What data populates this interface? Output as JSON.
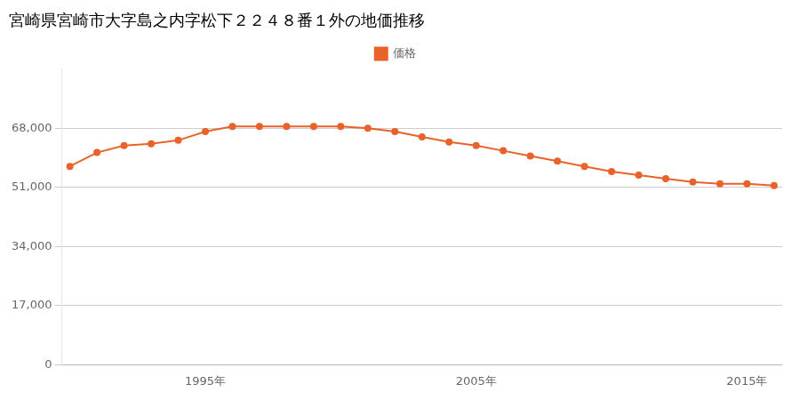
{
  "chart_data": {
    "type": "line",
    "title": "宮崎県宮崎市大字島之内字松下２２４８番１外の地価推移",
    "x": [
      1990,
      1991,
      1992,
      1993,
      1994,
      1995,
      1996,
      1997,
      1998,
      1999,
      2000,
      2001,
      2002,
      2003,
      2004,
      2005,
      2006,
      2007,
      2008,
      2009,
      2010,
      2011,
      2012,
      2013,
      2014,
      2015,
      2016
    ],
    "series": [
      {
        "name": "価格",
        "color": "#E8622A",
        "marker": "circle",
        "values": [
          57000,
          61000,
          63000,
          63500,
          64500,
          67000,
          68500,
          68500,
          68500,
          68500,
          68500,
          68000,
          67000,
          65500,
          64000,
          63000,
          61500,
          60000,
          58500,
          57000,
          55500,
          54500,
          53500,
          52500,
          52000,
          52000,
          51500
        ]
      }
    ],
    "xlim": [
      1989.7,
      2016.3
    ],
    "xticks": [
      {
        "value": 1995,
        "label": "1995年"
      },
      {
        "value": 2005,
        "label": "2005年"
      },
      {
        "value": 2015,
        "label": "2015年"
      }
    ],
    "ylim": [
      0,
      85000
    ],
    "yticks": [
      0,
      {
        "value": 17000,
        "label": "17,000"
      },
      {
        "value": 34000,
        "label": "34,000"
      },
      {
        "value": 51000,
        "label": "51,000"
      },
      {
        "value": 68000,
        "label": "68,000"
      }
    ],
    "grid": "y",
    "legend": "top"
  }
}
